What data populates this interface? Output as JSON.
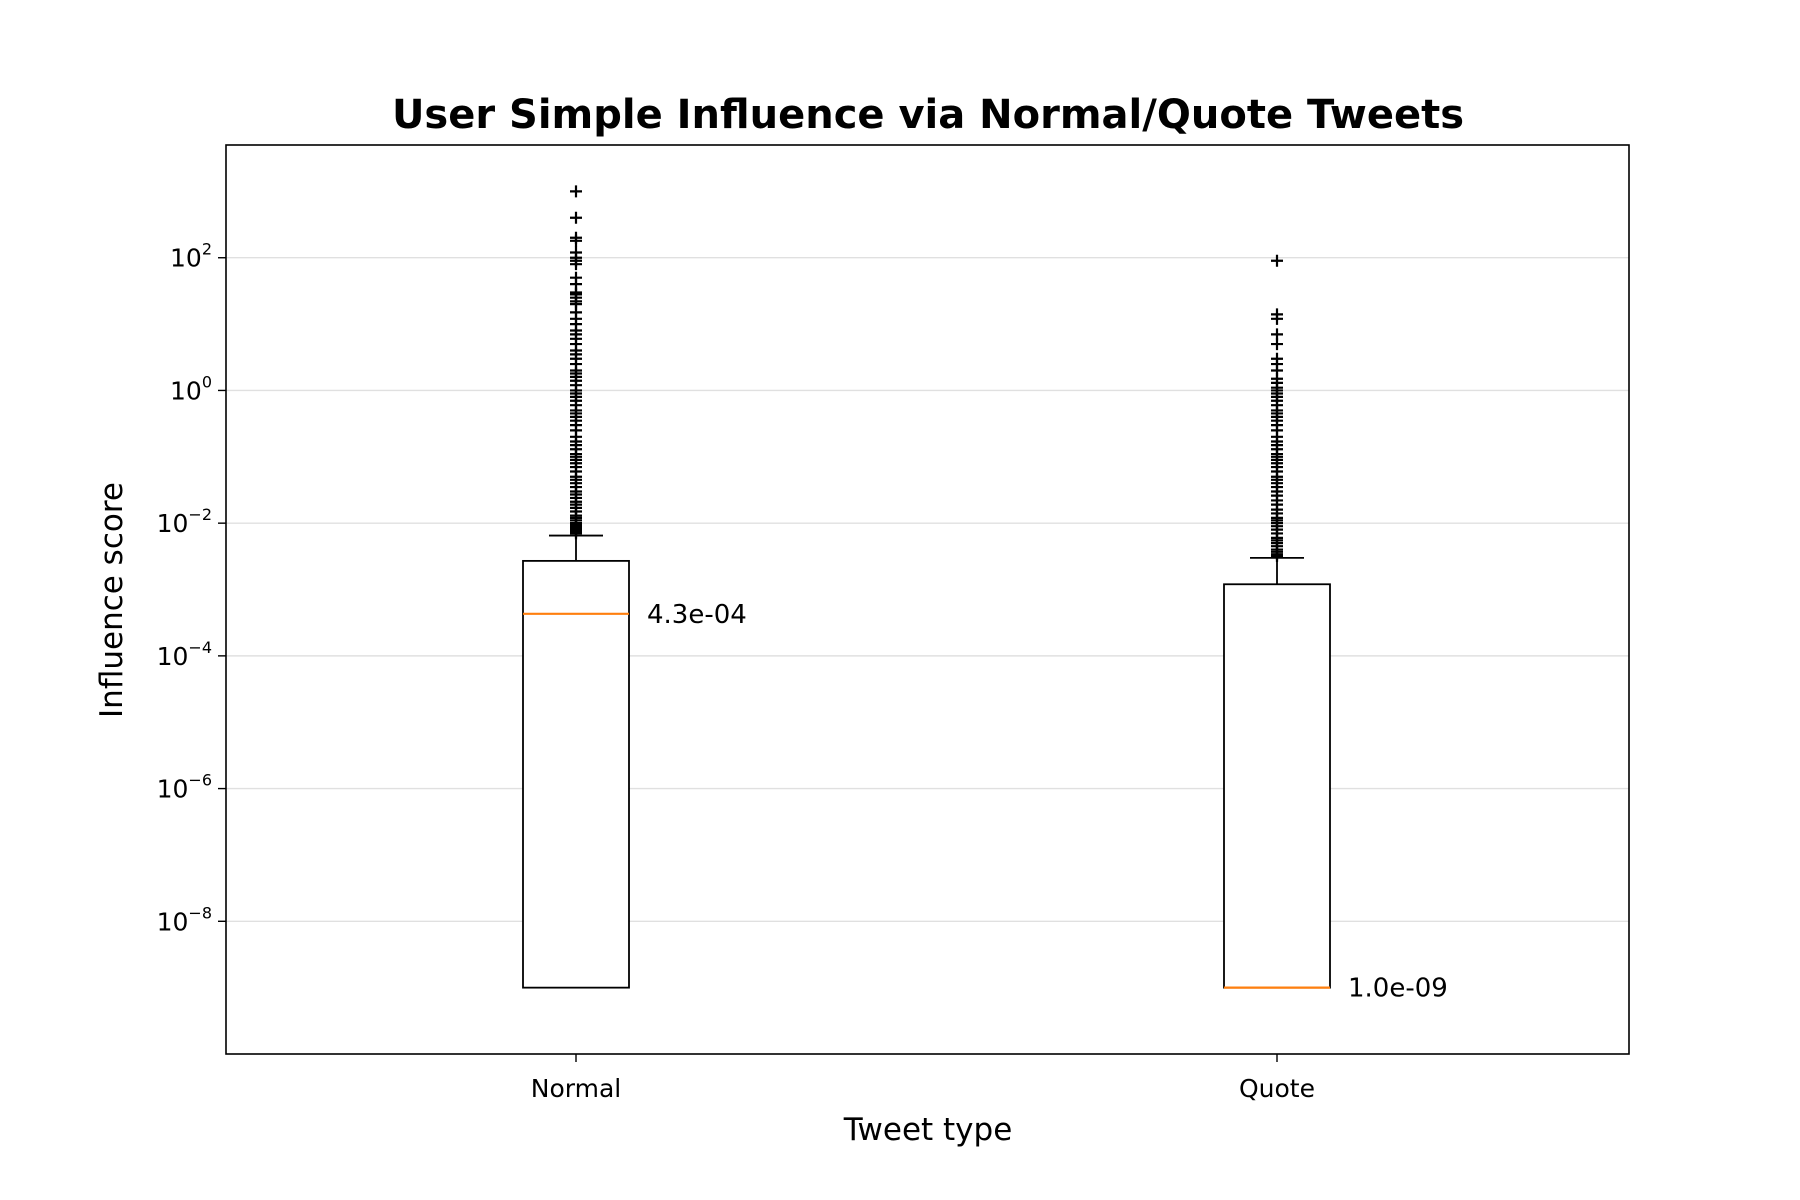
{
  "chart_data": {
    "type": "box",
    "title": "User Simple Influence via Normal/Quote Tweets",
    "xlabel": "Tweet type",
    "ylabel": "Influence score",
    "yscale": "log",
    "ylim": [
      1e-10,
      5000
    ],
    "yticks": [
      {
        "value": 1e-08,
        "base": "10",
        "exp": "−8"
      },
      {
        "value": 1e-06,
        "base": "10",
        "exp": "−6"
      },
      {
        "value": 0.0001,
        "base": "10",
        "exp": "−4"
      },
      {
        "value": 0.01,
        "base": "10",
        "exp": "−2"
      },
      {
        "value": 1,
        "base": "10",
        "exp": "0"
      },
      {
        "value": 100,
        "base": "10",
        "exp": "2"
      }
    ],
    "grid": "horizontal",
    "categories": [
      "Normal",
      "Quote"
    ],
    "boxes": [
      {
        "category": "Normal",
        "q1": 1e-09,
        "median": 0.00043,
        "q3": 0.0027,
        "whisker_low": 1e-09,
        "whisker_high": 0.0065,
        "median_label": "4.3e-04",
        "outliers": [
          1000,
          400,
          200,
          180,
          120,
          100,
          90,
          80,
          50,
          40,
          30,
          28,
          25,
          22,
          20,
          15,
          12,
          10,
          8,
          7,
          6,
          5,
          4,
          3.5,
          3,
          2.5,
          2,
          1.8,
          1.6,
          1.4,
          1.2,
          1,
          0.9,
          0.8,
          0.7,
          0.6,
          0.5,
          0.45,
          0.4,
          0.35,
          0.3,
          0.25,
          0.2,
          0.17,
          0.15,
          0.13,
          0.11,
          0.1,
          0.09,
          0.08,
          0.07,
          0.06,
          0.05,
          0.045,
          0.04,
          0.035,
          0.03,
          0.027,
          0.024,
          0.021,
          0.019,
          0.017,
          0.015,
          0.013,
          0.012,
          0.011,
          0.01,
          0.0095,
          0.009,
          0.0085,
          0.008,
          0.0075,
          0.007
        ]
      },
      {
        "category": "Quote",
        "q1": 1e-09,
        "median": 1e-09,
        "q3": 0.0012,
        "whisker_low": 1e-09,
        "whisker_high": 0.003,
        "median_label": "1.0e-09",
        "outliers": [
          90,
          14,
          12,
          7,
          5,
          3,
          2.5,
          2,
          1.5,
          1.3,
          1.1,
          1,
          0.9,
          0.8,
          0.7,
          0.6,
          0.5,
          0.45,
          0.4,
          0.35,
          0.3,
          0.25,
          0.2,
          0.17,
          0.15,
          0.13,
          0.11,
          0.1,
          0.09,
          0.08,
          0.07,
          0.06,
          0.05,
          0.045,
          0.04,
          0.035,
          0.03,
          0.026,
          0.022,
          0.019,
          0.016,
          0.014,
          0.012,
          0.011,
          0.01,
          0.009,
          0.008,
          0.007,
          0.006,
          0.0055,
          0.005,
          0.0045,
          0.004,
          0.0037,
          0.0034,
          0.0032
        ]
      }
    ],
    "colors": {
      "box": "#000000",
      "median": "#ff7f0e",
      "grid": "#e0e0e0",
      "outlier": "#000000"
    }
  }
}
